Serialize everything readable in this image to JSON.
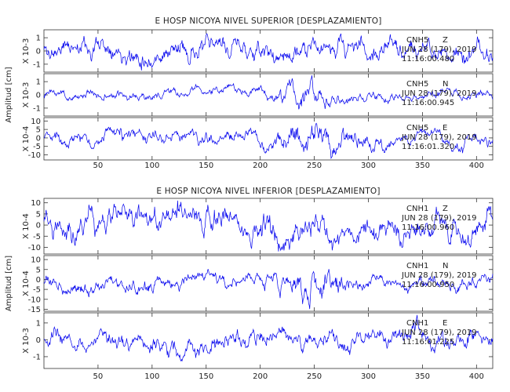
{
  "colors": {
    "trace": "#0000ee",
    "frame": "#333333",
    "text": "#222222"
  },
  "chart_data": [
    {
      "type": "line",
      "title": "E HOSP NICOYA NIVEL SUPERIOR [DESPLAZAMIENTO]",
      "ylabel": "Amplitud [cm]",
      "xlim": [
        0,
        415
      ],
      "xticks": [
        50,
        100,
        150,
        200,
        250,
        300,
        350,
        400
      ],
      "series": [
        {
          "name": "CNH5 Z",
          "scale": "X 10-3",
          "yticks": [
            -1,
            0,
            1
          ],
          "ylim": [
            -1.6,
            1.6
          ],
          "annotation": {
            "station": "CNH5",
            "component": "Z",
            "date": "JUN 28 (179), 2019",
            "time": "11:16:00.480"
          }
        },
        {
          "name": "CNH5 N",
          "scale": "X 10-3",
          "yticks": [
            -1,
            0,
            1
          ],
          "ylim": [
            -1.6,
            1.6
          ],
          "annotation": {
            "station": "CNH5",
            "component": "N",
            "date": "JUN 28 (179), 2019",
            "time": "11:16:00.945"
          }
        },
        {
          "name": "CNH5 E",
          "scale": "X 10-4",
          "yticks": [
            -10,
            -5,
            0,
            5,
            10
          ],
          "ylim": [
            -13,
            12
          ],
          "annotation": {
            "station": "CNH5",
            "component": "E",
            "date": "JUN 28 (179), 2019",
            "time": "11:16:01.320"
          }
        }
      ]
    },
    {
      "type": "line",
      "title": "E HOSP NICOYA NIVEL INFERIOR [DESPLAZAMIENTO]",
      "ylabel": "Amplitud [cm]",
      "xlim": [
        0,
        415
      ],
      "xticks": [
        50,
        100,
        150,
        200,
        250,
        300,
        350,
        400
      ],
      "series": [
        {
          "name": "CNH1 Z",
          "scale": "X 10-4",
          "yticks": [
            -10,
            -5,
            0,
            5,
            10
          ],
          "ylim": [
            -13,
            12
          ],
          "annotation": {
            "station": "CNH1",
            "component": "Z",
            "date": "JUN 28 (179), 2019",
            "time": "11:16:00.960"
          }
        },
        {
          "name": "CNH1 N",
          "scale": "X 10-4",
          "yticks": [
            -15,
            -10,
            -5,
            0,
            5,
            10
          ],
          "ylim": [
            -16,
            12
          ],
          "annotation": {
            "station": "CNH1",
            "component": "N",
            "date": "JUN 28 (179), 2019",
            "time": "11:16:00.950"
          }
        },
        {
          "name": "CNH1 E",
          "scale": "X 10-3",
          "yticks": [
            -1,
            0,
            1
          ],
          "ylim": [
            -1.7,
            1.6
          ],
          "annotation": {
            "station": "CNH1",
            "component": "E",
            "date": "JUN 28 (179), 2019",
            "time": "11:16:01.225"
          }
        }
      ]
    }
  ]
}
